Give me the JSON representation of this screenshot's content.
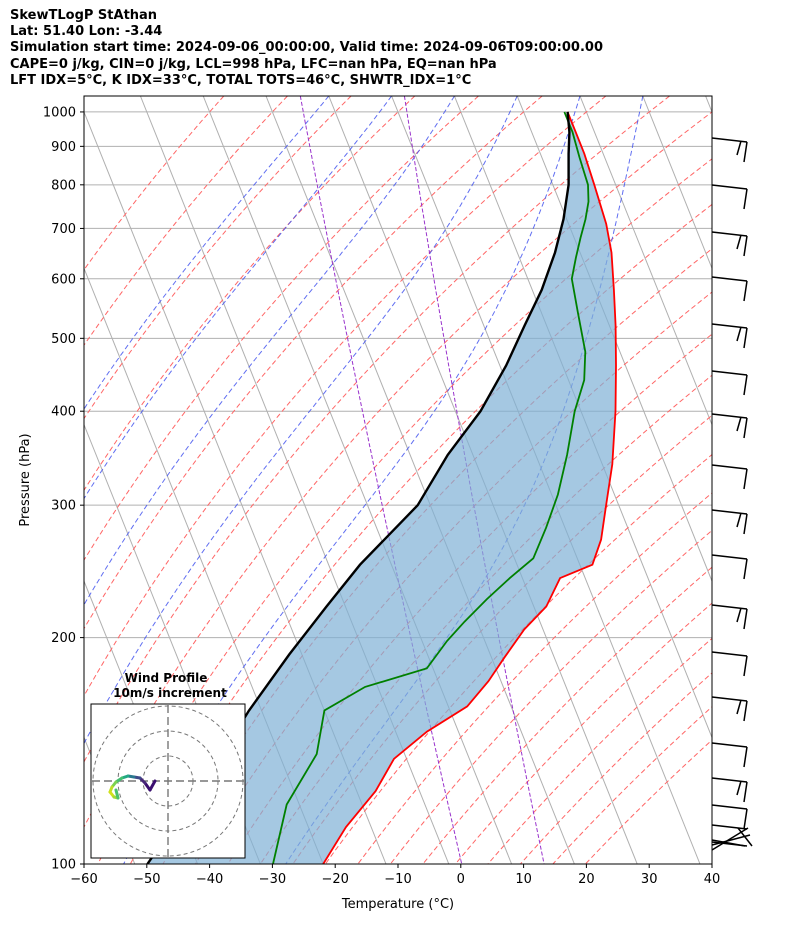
{
  "header": {
    "line1": "SkewTLogP StAthan",
    "line2": "Lat: 51.40   Lon: -3.44",
    "line3": "Simulation start time: 2024-09-06_00:00:00, Valid time: 2024-09-06T09:00:00.00",
    "line4": "CAPE=0 j/kg, CIN=0 j/kg, LCL=998 hPa, LFC=nan hPa, EQ=nan hPa",
    "line5": "LFT IDX=5°C, K IDX=33°C, TOTAL TOTS=46°C, SHWTR_IDX=1°C"
  },
  "chart_data": [
    {
      "type": "line",
      "xlabel": "Temperature (°C)",
      "ylabel": "Pressure (hPa)",
      "xlim": [
        -60,
        40
      ],
      "ylim": [
        1050,
        100
      ],
      "y_scale": "log",
      "skew": "x-axis skewed with pressure",
      "x_ticks": [
        -60,
        -50,
        -40,
        -30,
        -20,
        -10,
        0,
        10,
        20,
        30,
        40
      ],
      "x_tick_labels": [
        "−60",
        "−50",
        "−40",
        "−30",
        "−20",
        "−10",
        "0",
        "10",
        "20",
        "30",
        "40"
      ],
      "y_ticks": [
        1000,
        900,
        800,
        700,
        600,
        500,
        400,
        300,
        200,
        100
      ],
      "y_tick_labels": [
        "1000",
        "900",
        "800",
        "700",
        "600",
        "500",
        "400",
        "300",
        "200",
        "100"
      ],
      "grid": true,
      "series": [
        {
          "role": "temperature",
          "color": "#ff0000",
          "points": [
            [
              17,
              1000
            ],
            [
              17,
              940
            ],
            [
              17,
              880
            ],
            [
              16.6,
              800
            ],
            [
              16,
              710
            ],
            [
              15,
              650
            ],
            [
              13,
              580
            ],
            [
              11,
              520
            ],
            [
              8.5,
              460
            ],
            [
              5.5,
              400
            ],
            [
              1.6,
              340
            ],
            [
              -2,
              300
            ],
            [
              -5,
              270
            ],
            [
              -8,
              250
            ],
            [
              -14,
              240
            ],
            [
              -18,
              220
            ],
            [
              -23,
              205
            ],
            [
              -28,
              188
            ],
            [
              -32,
              175
            ],
            [
              -37,
              162
            ],
            [
              -45,
              150
            ],
            [
              -52,
              138
            ],
            [
              -57,
              125
            ],
            [
              -64,
              112
            ],
            [
              -70,
              100
            ]
          ]
        },
        {
          "role": "dewpoint",
          "color": "#008000",
          "points": [
            [
              16.5,
              1000
            ],
            [
              16.5,
              940
            ],
            [
              16,
              870
            ],
            [
              15.6,
              800
            ],
            [
              14.6,
              760
            ],
            [
              13,
              720
            ],
            [
              11,
              680
            ],
            [
              9,
              640
            ],
            [
              7,
              600
            ],
            [
              5.8,
              540
            ],
            [
              4.5,
              480
            ],
            [
              2.5,
              440
            ],
            [
              -1,
              400
            ],
            [
              -5,
              350
            ],
            [
              -9,
              310
            ],
            [
              -13,
              280
            ],
            [
              -17,
              255
            ],
            [
              -22,
              240
            ],
            [
              -27,
              225
            ],
            [
              -32,
              210
            ],
            [
              -36,
              198
            ],
            [
              -41,
              182
            ],
            [
              -52,
              172
            ],
            [
              -60,
              160
            ],
            [
              -64,
              140
            ],
            [
              -72,
              120
            ],
            [
              -78,
              100
            ]
          ]
        },
        {
          "role": "parcel",
          "color": "#000000",
          "points": [
            [
              17,
              1000
            ],
            [
              16,
              940
            ],
            [
              14.5,
              880
            ],
            [
              12.5,
              800
            ],
            [
              9.5,
              720
            ],
            [
              6,
              650
            ],
            [
              1.5,
              580
            ],
            [
              -3.5,
              520
            ],
            [
              -9,
              460
            ],
            [
              -16,
              400
            ],
            [
              -24,
              350
            ],
            [
              -32,
              300
            ],
            [
              -45,
              250
            ],
            [
              -53,
              220
            ],
            [
              -62,
              190
            ],
            [
              -72,
              160
            ],
            [
              -83,
              130
            ],
            [
              -98,
              100
            ]
          ]
        }
      ]
    },
    {
      "type": "scatter",
      "title": "Wind Profile",
      "subtitle": "10m/s increment"
    }
  ]
}
